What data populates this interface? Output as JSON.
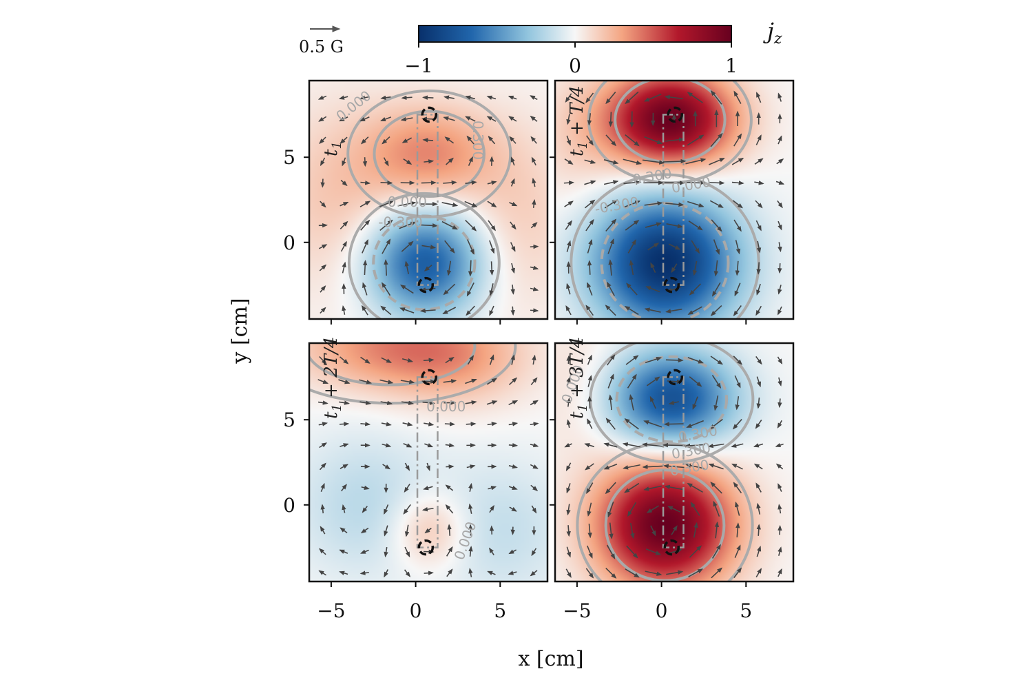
{
  "chart_data": {
    "type": "heatmap",
    "title": "",
    "xlabel": "x [cm]",
    "ylabel": "y [cm]",
    "x_ticks": [
      -5,
      0,
      5
    ],
    "y_ticks": [
      0,
      5
    ],
    "y_tick_labels": [
      "0",
      "5"
    ],
    "x_tick_labels": [
      "−5",
      "0",
      "5"
    ],
    "xlim": [
      -6.3,
      7.8
    ],
    "ylim": [
      -4.5,
      9.5
    ],
    "colorbar": {
      "label": "jz",
      "label_main": "j",
      "label_sub": "z",
      "ticks": [
        -1,
        0,
        1
      ],
      "tick_labels": [
        "−1",
        "0",
        "1"
      ],
      "colormap": "RdBu_r",
      "colors": [
        "#08306b",
        "#2166ac",
        "#92c5de",
        "#f7f7f7",
        "#f4a582",
        "#b2182b",
        "#67001f"
      ]
    },
    "quiver_key": {
      "label": "0.5 G"
    },
    "contour_levels": [
      "-0.300",
      "0.000",
      "0.300"
    ],
    "panels": [
      {
        "label": "t1",
        "label_text": "t",
        "label_sub": "1",
        "label_rest": "",
        "blobs": [
          {
            "x": 0.8,
            "y": 5.2,
            "amp": 0.35,
            "sx": 2.6,
            "sy": 2.0
          },
          {
            "x": 0.5,
            "y": -1.2,
            "amp": -0.75,
            "sx": 2.4,
            "sy": 2.2
          },
          {
            "x": -4.5,
            "y": 2.5,
            "amp": 0.18,
            "sx": 3.0,
            "sy": 4.0
          },
          {
            "x": 6.0,
            "y": 1.5,
            "amp": 0.15,
            "sx": 2.5,
            "sy": 4.0
          }
        ],
        "contour_labels": [
          {
            "text": "0.000",
            "x": -3.5,
            "y": 7.8,
            "rot": -38
          },
          {
            "text": "0.300",
            "x": 3.4,
            "y": 6.0,
            "rot": 90
          },
          {
            "text": "0.000",
            "x": -0.5,
            "y": 2.1,
            "rot": 0
          },
          {
            "text": "-0.300",
            "x": -0.9,
            "y": 0.9,
            "rot": 0
          }
        ],
        "markers": [
          {
            "x": 0.8,
            "y": 7.5
          },
          {
            "x": 0.6,
            "y": -2.5
          }
        ]
      },
      {
        "label": "t1 + T/4",
        "label_text": "t",
        "label_sub": "1",
        "label_rest": " + T/4",
        "blobs": [
          {
            "x": 0.5,
            "y": 7.2,
            "amp": 1.0,
            "sx": 2.6,
            "sy": 2.0
          },
          {
            "x": 0.2,
            "y": -1.2,
            "amp": -1.0,
            "sx": 3.0,
            "sy": 2.8
          },
          {
            "x": -5.0,
            "y": 6.0,
            "amp": 0.12,
            "sx": 2.0,
            "sy": 3.0
          }
        ],
        "contour_labels": [
          {
            "text": "0.300",
            "x": -0.5,
            "y": 3.6,
            "rot": -10
          },
          {
            "text": "0.000",
            "x": 1.8,
            "y": 3.1,
            "rot": -10
          },
          {
            "text": "-0.300",
            "x": -2.6,
            "y": 1.9,
            "rot": -10
          }
        ],
        "markers": [
          {
            "x": 0.8,
            "y": 7.5
          },
          {
            "x": 0.6,
            "y": -2.5
          }
        ]
      },
      {
        "label": "t1 + 2T/4",
        "label_text": "t",
        "label_sub": "1",
        "label_rest": " + 2T/4",
        "blobs": [
          {
            "x": -1.5,
            "y": 9.3,
            "amp": 0.35,
            "sx": 4.0,
            "sy": 1.8
          },
          {
            "x": 2.5,
            "y": 8.5,
            "amp": 0.2,
            "sx": 3.0,
            "sy": 2.0
          },
          {
            "x": 0.8,
            "y": -1.5,
            "amp": 0.25,
            "sx": 1.6,
            "sy": 1.6
          },
          {
            "x": -3.0,
            "y": 0.0,
            "amp": -0.18,
            "sx": 3.0,
            "sy": 3.0
          },
          {
            "x": 5.0,
            "y": -1.5,
            "amp": -0.15,
            "sx": 3.0,
            "sy": 3.0
          }
        ],
        "contour_labels": [
          {
            "text": "0.000",
            "x": 1.8,
            "y": 5.5,
            "rot": 0
          },
          {
            "text": "0.000",
            "x": 3.2,
            "y": -2.2,
            "rot": -70
          }
        ],
        "markers": [
          {
            "x": 0.8,
            "y": 7.5
          },
          {
            "x": 0.6,
            "y": -2.5
          }
        ]
      },
      {
        "label": "t1 + 3T/4",
        "label_text": "t",
        "label_sub": "1",
        "label_rest": " + 3T/4",
        "blobs": [
          {
            "x": 0.6,
            "y": 6.2,
            "amp": -0.8,
            "sx": 2.6,
            "sy": 2.0
          },
          {
            "x": 0.2,
            "y": -1.2,
            "amp": 1.0,
            "sx": 2.8,
            "sy": 2.6
          },
          {
            "x": -5.0,
            "y": 7.0,
            "amp": 0.1,
            "sx": 2.0,
            "sy": 3.0
          }
        ],
        "contour_labels": [
          {
            "text": "0.000",
            "x": -5.0,
            "y": 7.0,
            "rot": -70
          },
          {
            "text": "0.300",
            "x": 2.2,
            "y": 3.9,
            "rot": -10
          },
          {
            "text": "0.300",
            "x": 1.8,
            "y": 2.9,
            "rot": -10
          },
          {
            "text": "0.300",
            "x": 1.7,
            "y": 1.9,
            "rot": -10
          }
        ],
        "markers": [
          {
            "x": 0.8,
            "y": 7.5
          },
          {
            "x": 0.6,
            "y": -2.5
          }
        ]
      }
    ]
  }
}
